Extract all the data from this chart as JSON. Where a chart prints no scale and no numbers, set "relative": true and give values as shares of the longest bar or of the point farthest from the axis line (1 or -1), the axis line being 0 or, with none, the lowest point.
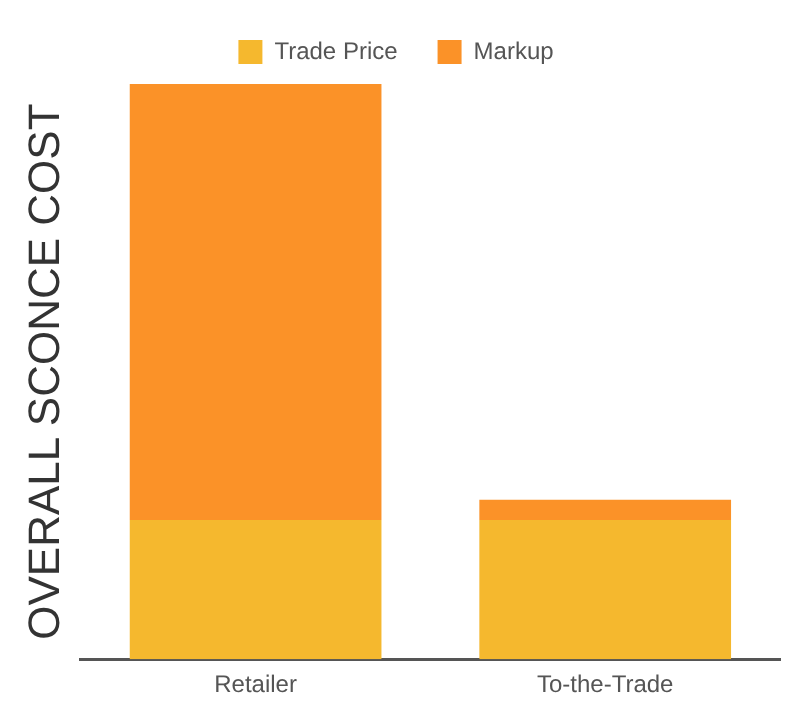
{
  "chart_data": {
    "type": "bar",
    "stacked": true,
    "relative": true,
    "ylabel": "OVERALL SCONCE COST",
    "categories": [
      "Retailer",
      "To-the-Trade"
    ],
    "series": [
      {
        "name": "Trade Price",
        "color": "#f5b82e",
        "values": [
          0.242,
          0.242
        ]
      },
      {
        "name": "Markup",
        "color": "#fb9228",
        "values": [
          0.758,
          0.035
        ]
      }
    ],
    "legend": "top"
  }
}
